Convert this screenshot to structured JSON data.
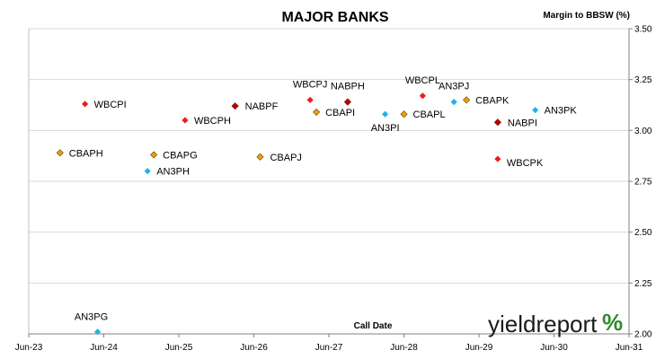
{
  "chart_data": {
    "type": "scatter",
    "title": "MAJOR BANKS",
    "ylabel": "Margin to BBSW (%)",
    "xlabel": "Call Date",
    "x_ticks": [
      "Jun-23",
      "Jun-24",
      "Jun-25",
      "Jun-26",
      "Jun-27",
      "Jun-28",
      "Jun-29",
      "Jun-30",
      "Jun-31"
    ],
    "y_ticks": [
      "2.00",
      "2.25",
      "2.50",
      "2.75",
      "3.00",
      "3.25",
      "3.50"
    ],
    "xlim": [
      "2023-06",
      "2031-06"
    ],
    "ylim": [
      2.0,
      3.5
    ],
    "y_axis_side": "right",
    "grid": "horizontal",
    "colors": {
      "WBC": "#ee1c1c",
      "NAB": "#c00000",
      "CBA": "#f0a000",
      "ANZ": "#1fb4ea"
    },
    "points": [
      {
        "label": "WBCPI",
        "group": "WBC",
        "x": "2024-03",
        "y": 3.13
      },
      {
        "label": "WBCPH",
        "group": "WBC",
        "x": "2025-07",
        "y": 3.05
      },
      {
        "label": "NABPF",
        "group": "NAB",
        "x": "2026-03",
        "y": 3.12
      },
      {
        "label": "WBCPJ",
        "group": "WBC",
        "x": "2027-03",
        "y": 3.15
      },
      {
        "label": "CBAPI",
        "group": "CBA",
        "x": "2027-04",
        "y": 3.09
      },
      {
        "label": "NABPH",
        "group": "NAB",
        "x": "2027-09",
        "y": 3.14
      },
      {
        "label": "AN3PI",
        "group": "ANZ",
        "x": "2028-03",
        "y": 3.08
      },
      {
        "label": "CBAPL",
        "group": "CBA",
        "x": "2028-06",
        "y": 3.08
      },
      {
        "label": "WBCPL",
        "group": "WBC",
        "x": "2028-09",
        "y": 3.17
      },
      {
        "label": "AN3PJ",
        "group": "ANZ",
        "x": "2029-02",
        "y": 3.14
      },
      {
        "label": "CBAPK",
        "group": "CBA",
        "x": "2029-04",
        "y": 3.15
      },
      {
        "label": "NABPI",
        "group": "NAB",
        "x": "2029-09",
        "y": 3.04
      },
      {
        "label": "WBCPK",
        "group": "WBC",
        "x": "2029-09",
        "y": 2.86
      },
      {
        "label": "AN3PK",
        "group": "ANZ",
        "x": "2030-03",
        "y": 3.1
      },
      {
        "label": "CBAPH",
        "group": "CBA",
        "x": "2023-11",
        "y": 2.89
      },
      {
        "label": "CBAPG",
        "group": "CBA",
        "x": "2025-02",
        "y": 2.88
      },
      {
        "label": "AN3PH",
        "group": "ANZ",
        "x": "2025-01",
        "y": 2.8
      },
      {
        "label": "CBAPJ",
        "group": "CBA",
        "x": "2026-07",
        "y": 2.87
      },
      {
        "label": "AN3PG",
        "group": "ANZ",
        "x": "2024-05",
        "y": 2.01
      }
    ]
  },
  "logo": {
    "text": "yieldreport",
    "symbol": "%",
    "symbol_colors": [
      "#2e8b2e",
      "#c62828"
    ]
  }
}
